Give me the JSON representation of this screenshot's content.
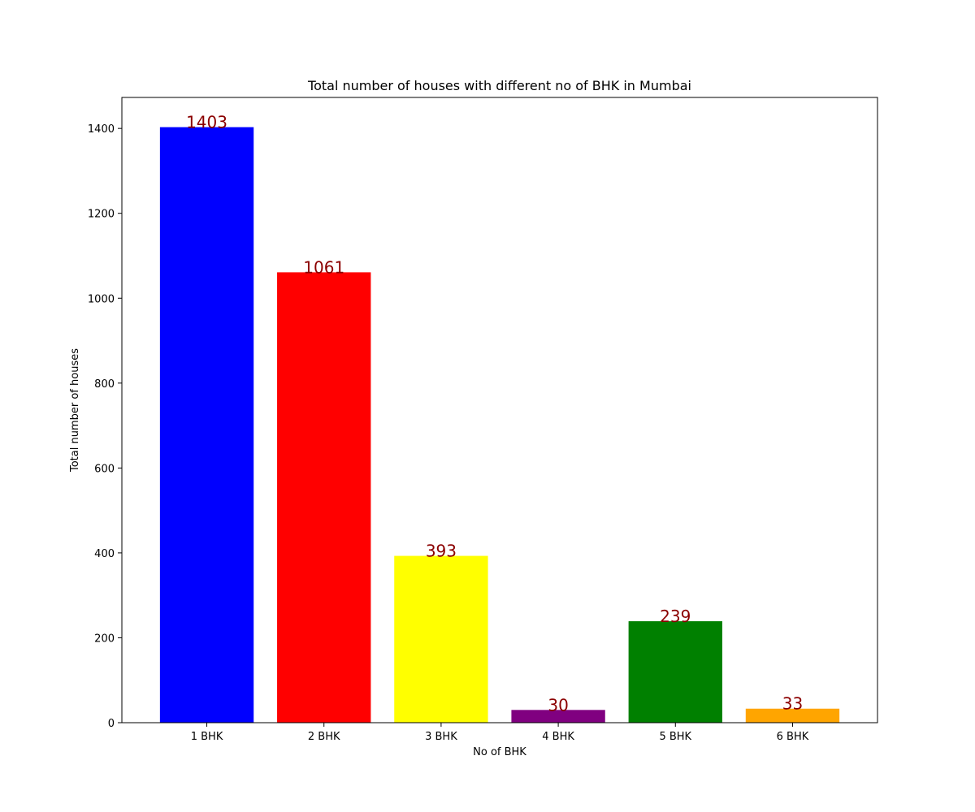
{
  "chart_data": {
    "type": "bar",
    "title": "Total number of houses with different no of BHK in Mumbai",
    "xlabel": "No of BHK",
    "ylabel": "Total number of houses",
    "categories": [
      "1 BHK",
      "2 BHK",
      "3 BHK",
      "4 BHK",
      "5 BHK",
      "6 BHK"
    ],
    "values": [
      1403,
      1061,
      393,
      30,
      239,
      33
    ],
    "data_labels": [
      "1403",
      "1061",
      "393",
      "30",
      "239",
      "33"
    ],
    "bar_colors": [
      "#0000ff",
      "#ff0000",
      "#ffff00",
      "#800080",
      "#008000",
      "#ffa500"
    ],
    "data_label_color": "#8b0000",
    "ylim": [
      0,
      1473
    ],
    "yticks": [
      0,
      200,
      400,
      600,
      800,
      1000,
      1200,
      1400
    ],
    "ytick_labels": [
      "0",
      "200",
      "400",
      "600",
      "800",
      "1000",
      "1200",
      "1400"
    ],
    "grid": false,
    "legend": "none"
  }
}
